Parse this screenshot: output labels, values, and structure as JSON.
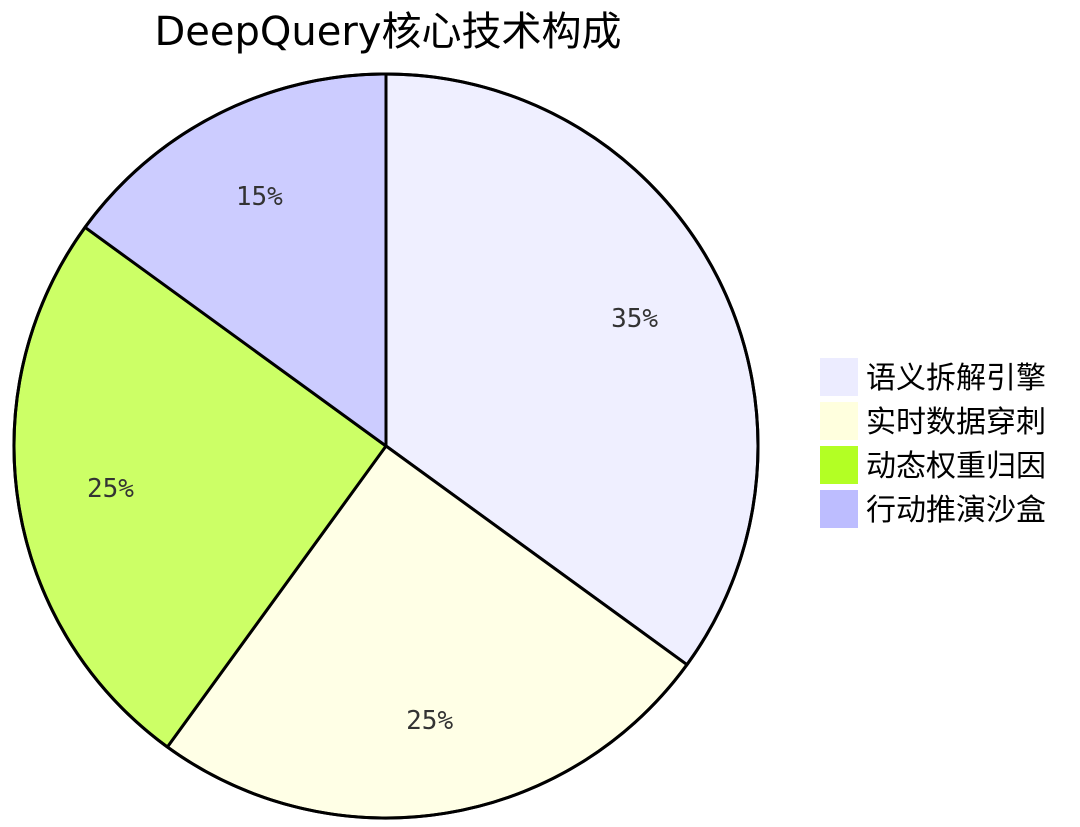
{
  "chart_data": {
    "type": "pie",
    "title": "DeepQuery核心技术构成",
    "slices": [
      {
        "label": "语义拆解引擎",
        "value": 35,
        "display": "35%",
        "color": "#efefff",
        "legend_color": "#ececff"
      },
      {
        "label": "实时数据穿刺",
        "value": 25,
        "display": "25%",
        "color": "#ffffe6",
        "legend_color": "#ffffde"
      },
      {
        "label": "动态权重归因",
        "value": 25,
        "display": "25%",
        "color": "#ccff66",
        "legend_color": "#b3ff24"
      },
      {
        "label": "行动推演沙盒",
        "value": 15,
        "display": "15%",
        "color": "#ccccff",
        "legend_color": "#bdbdff"
      }
    ],
    "legend_position": "right"
  }
}
